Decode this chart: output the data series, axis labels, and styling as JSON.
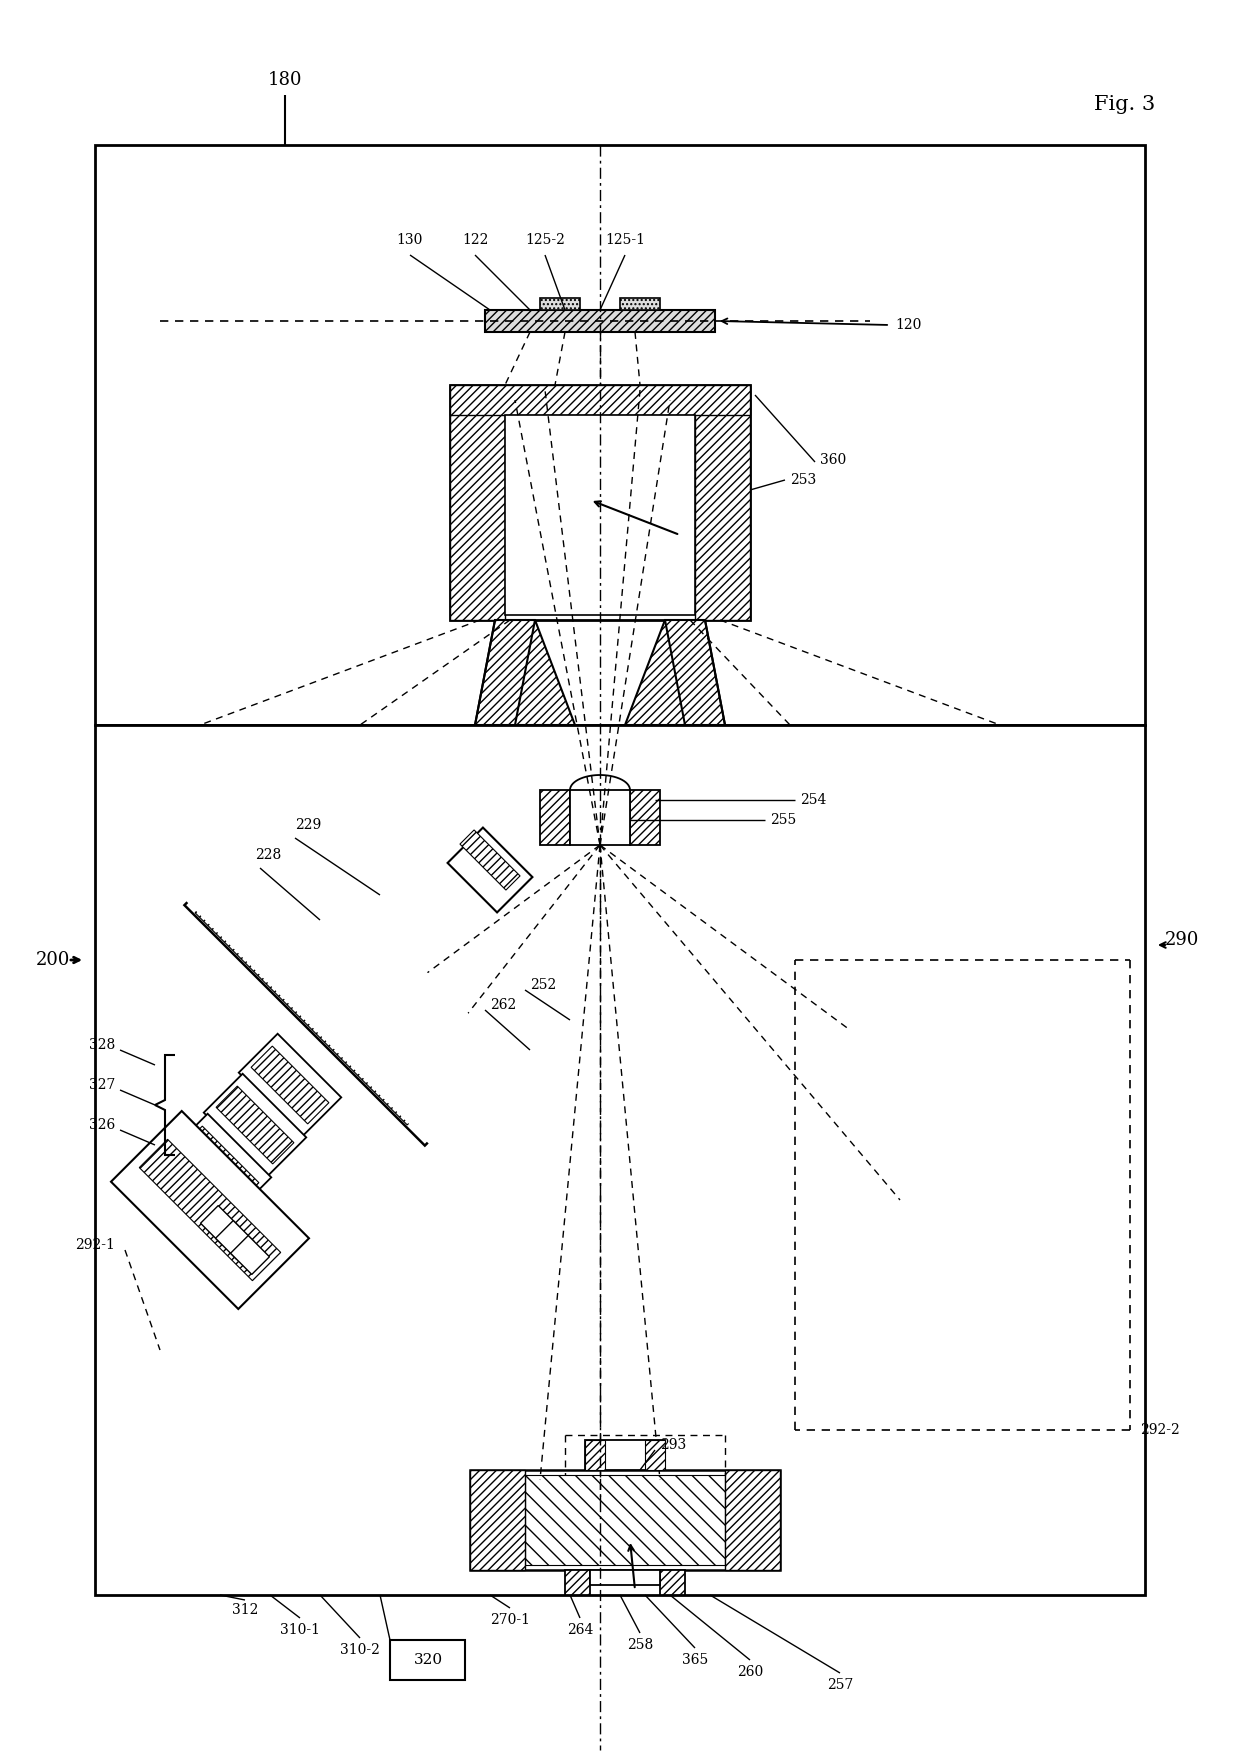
{
  "fig_label": "Fig. 3",
  "ref_180": "180",
  "ref_200": "200",
  "ref_120": "120",
  "ref_130": "130",
  "ref_122": "122",
  "ref_125_2": "125-2",
  "ref_125_1": "125-1",
  "ref_253": "253",
  "ref_360": "360",
  "ref_290": "290",
  "ref_228": "228",
  "ref_229": "229",
  "ref_254": "254",
  "ref_255": "255",
  "ref_252": "252",
  "ref_262": "262",
  "ref_293": "293",
  "ref_292_1": "292-1",
  "ref_292_2": "292-2",
  "ref_328": "328",
  "ref_327": "327",
  "ref_326": "326",
  "ref_312": "312",
  "ref_310_1": "310-1",
  "ref_310_2": "310-2",
  "ref_320": "320",
  "ref_270_1": "270-1",
  "ref_264": "264",
  "ref_258": "258",
  "ref_365": "365",
  "ref_260": "260",
  "ref_257": "257",
  "bg_color": "#ffffff",
  "line_color": "#000000"
}
